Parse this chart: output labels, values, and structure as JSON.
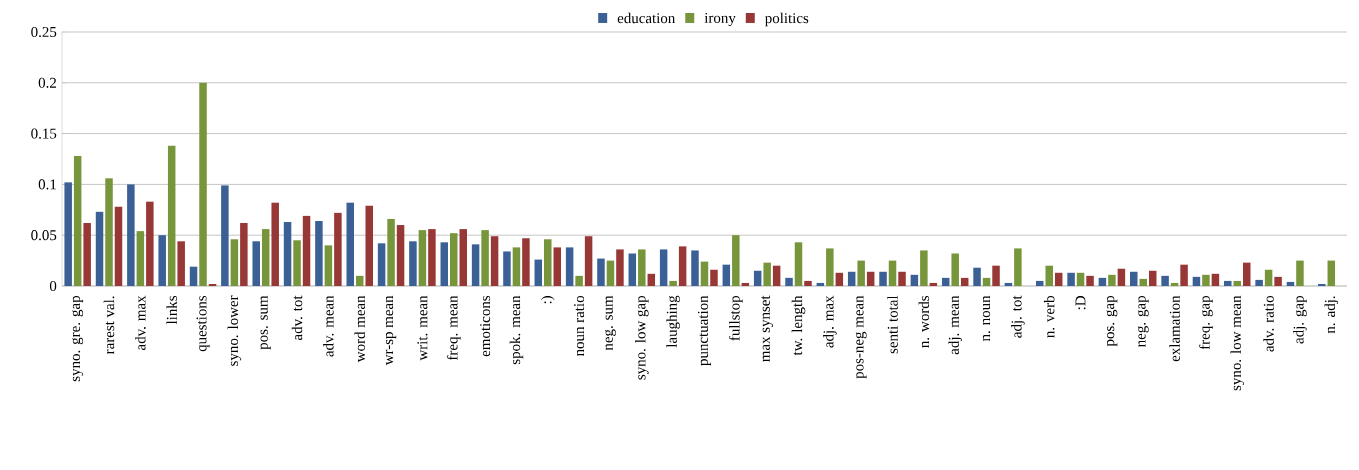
{
  "chart_data": {
    "type": "bar",
    "categories": [
      "syno. gre. gap",
      "rarest val.",
      "adv. max",
      "links",
      "questions",
      "syno. lower",
      "pos. sum",
      "adv. tot",
      "adv. mean",
      "word mean",
      "wr-sp mean",
      "writ. mean",
      "freq. mean",
      "emoticons",
      "spok. mean",
      ":)",
      "noun ratio",
      "neg. sum",
      "syno. low gap",
      "laughing",
      "punctuation",
      "fullstop",
      "max synset",
      "tw. length",
      "adj. max",
      "pos-neg mean",
      "senti total",
      "n. words",
      "adj. mean",
      "n. noun",
      "adj. tot",
      "n. verb",
      ":D",
      "pos. gap",
      "neg. gap",
      "exlamation",
      "freq. gap",
      "syno. low mean",
      "adv. ratio",
      "adj. gap",
      "n. adj."
    ],
    "series": [
      {
        "name": "education",
        "color": "#3a6096",
        "values": [
          0.102,
          0.073,
          0.1,
          0.05,
          0.019,
          0.099,
          0.044,
          0.063,
          0.064,
          0.082,
          0.042,
          0.044,
          0.043,
          0.041,
          0.034,
          0.026,
          0.038,
          0.027,
          0.032,
          0.036,
          0.035,
          0.021,
          0.015,
          0.008,
          0.003,
          0.014,
          0.014,
          0.011,
          0.008,
          0.018,
          0.003,
          0.005,
          0.013,
          0.008,
          0.014,
          0.01,
          0.009,
          0.005,
          0.006,
          0.004,
          0.002
        ]
      },
      {
        "name": "irony",
        "color": "#77963c",
        "values": [
          0.128,
          0.106,
          0.054,
          0.138,
          0.2,
          0.046,
          0.056,
          0.045,
          0.04,
          0.01,
          0.066,
          0.055,
          0.052,
          0.055,
          0.038,
          0.046,
          0.01,
          0.025,
          0.036,
          0.005,
          0.024,
          0.05,
          0.023,
          0.043,
          0.037,
          0.025,
          0.025,
          0.035,
          0.032,
          0.008,
          0.037,
          0.02,
          0.013,
          0.011,
          0.007,
          0.003,
          0.011,
          0.005,
          0.016,
          0.025,
          0.025
        ]
      },
      {
        "name": "politics",
        "color": "#983836",
        "values": [
          0.062,
          0.078,
          0.083,
          0.044,
          0.002,
          0.062,
          0.082,
          0.069,
          0.072,
          0.079,
          0.06,
          0.056,
          0.056,
          0.049,
          0.047,
          0.038,
          0.049,
          0.036,
          0.012,
          0.039,
          0.016,
          0.003,
          0.02,
          0.005,
          0.013,
          0.014,
          0.014,
          0.003,
          0.008,
          0.02,
          0,
          0.013,
          0.01,
          0.017,
          0.015,
          0.021,
          0.012,
          0.023,
          0.009,
          0,
          0
        ]
      }
    ],
    "ylim": [
      0,
      0.25
    ],
    "yticks": [
      0,
      0.05,
      0.1,
      0.15,
      0.2,
      0.25
    ],
    "grid": "y",
    "legend": "top"
  }
}
